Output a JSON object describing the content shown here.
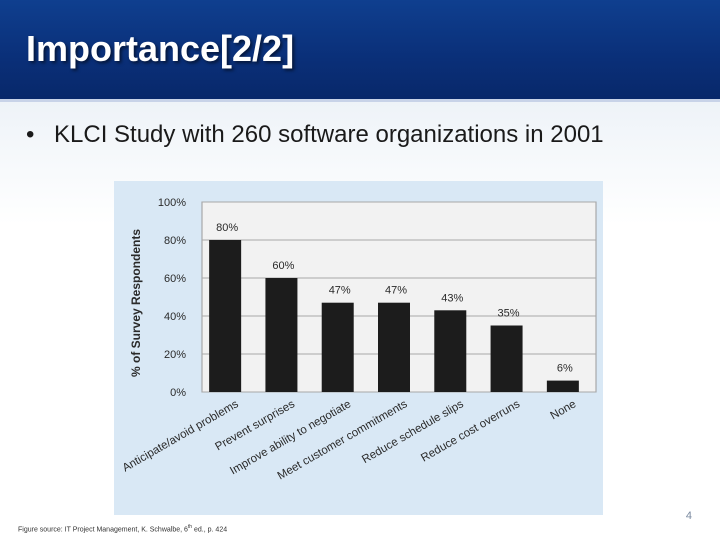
{
  "slide": {
    "title": "Importance[2/2]",
    "bullet": "KLCI Study with 260 software organizations in 2001",
    "footnote_pre": "Figure source: IT Project Management, K. Schwalbe, 6",
    "footnote_sup": "th",
    "footnote_post": " ed., p. 424",
    "page_number": "4"
  },
  "colors": {
    "title_bg": "#0b3580",
    "panel_bg": "#d9e8f5",
    "bar": "#1c1c1c",
    "plot_bg": "#f2f2f2"
  },
  "chart_data": {
    "type": "bar",
    "title": "",
    "xlabel": "",
    "ylabel": "% of Survey Respondents",
    "ylim": [
      0,
      100
    ],
    "yticks": [
      "0%",
      "20%",
      "40%",
      "60%",
      "80%",
      "100%"
    ],
    "categories": [
      "Anticipate/avoid problems",
      "Prevent surprises",
      "Improve ability to negotiate",
      "Meet customer commitments",
      "Reduce schedule slips",
      "Reduce cost overruns",
      "None"
    ],
    "values": [
      80,
      60,
      47,
      47,
      43,
      35,
      6
    ],
    "labels": [
      "80%",
      "60%",
      "47%",
      "47%",
      "43%",
      "35%",
      "6%"
    ],
    "grid": true,
    "legend": "none"
  }
}
